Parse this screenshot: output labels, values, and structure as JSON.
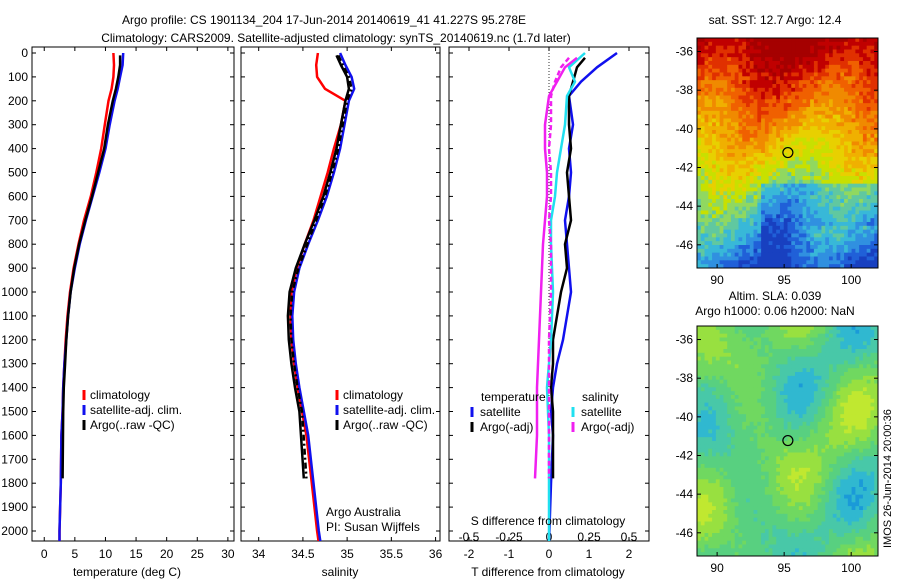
{
  "header": {
    "line1": "Argo profile: CS 1901134_204 17-Jun-2014 20140619_41 41.227S 95.278E",
    "line2": "Climatology: CARS2009. Satellite-adjusted climatology: synTS_20140619.nc (1.7d later)"
  },
  "credits": {
    "line1": "Argo Australia",
    "line2": "PI: Susan Wijffels"
  },
  "map_sst": {
    "label": "sat. SST: 12.7 Argo: 12.4"
  },
  "map_sla": {
    "label1": "Altim. SLA: 0.039",
    "label2": "Argo h1000: 0.06 h2000: NaN"
  },
  "vertical_stamp": "IMOS 26-Jun-2014 20:00:36",
  "colors": {
    "red": "#ff0000",
    "blue": "#1010ee",
    "black": "#000000",
    "cyan": "#20e0f0",
    "magenta": "#f020f0"
  },
  "chart_data": [
    {
      "type": "line",
      "id": "temperature",
      "xlabel": "temperature (deg C)",
      "ylabel": "",
      "xlim": [
        -2,
        31
      ],
      "ylim": [
        2050,
        0
      ],
      "xticks": [
        0,
        5,
        10,
        15,
        20,
        25,
        30
      ],
      "yticks": [
        0,
        100,
        200,
        300,
        400,
        500,
        600,
        700,
        800,
        900,
        1000,
        1100,
        1200,
        1300,
        1400,
        1500,
        1600,
        1700,
        1800,
        1900,
        2000
      ],
      "legend": {
        "position": "bottom-right",
        "entries": [
          "climatology",
          "satellite-adj. clim.",
          "Argo(..raw -QC)"
        ]
      },
      "series": [
        {
          "name": "climatology",
          "color": "red",
          "dash": "solid",
          "x": [
            11.3,
            11.4,
            11.3,
            11.0,
            10.5,
            9.9,
            9.3,
            8.5,
            7.6,
            6.5,
            5.6,
            4.8,
            4.2,
            3.8,
            3.5,
            3.3,
            3.1,
            3.0,
            2.8,
            2.7,
            2.5,
            2.5
          ],
          "y": [
            0,
            50,
            100,
            150,
            200,
            300,
            400,
            500,
            600,
            700,
            800,
            900,
            1000,
            1100,
            1200,
            1300,
            1400,
            1500,
            1600,
            1800,
            2000,
            2050
          ]
        },
        {
          "name": "satellite-adj. clim.",
          "color": "blue",
          "dash": "solid",
          "x": [
            12.9,
            12.8,
            12.4,
            12.0,
            11.5,
            10.7,
            10.0,
            9.0,
            7.9,
            6.8,
            5.8,
            5.0,
            4.3,
            3.9,
            3.6,
            3.3,
            3.1,
            3.0,
            2.8,
            2.7,
            2.5,
            2.5
          ],
          "y": [
            0,
            50,
            100,
            150,
            200,
            300,
            400,
            500,
            600,
            700,
            800,
            900,
            1000,
            1100,
            1200,
            1300,
            1400,
            1500,
            1600,
            1800,
            2000,
            2050
          ]
        },
        {
          "name": "Argo(..raw -QC)",
          "color": "black",
          "dash": "solid",
          "x": [
            12.4,
            12.4,
            12.1,
            11.7,
            11.2,
            10.4,
            9.8,
            8.8,
            7.8,
            6.7,
            5.7,
            4.9,
            4.3,
            3.9,
            3.6,
            3.4,
            3.2,
            3.1,
            3.0
          ],
          "y": [
            10,
            50,
            100,
            150,
            200,
            300,
            400,
            500,
            600,
            700,
            800,
            900,
            1000,
            1100,
            1200,
            1300,
            1400,
            1500,
            1780
          ]
        }
      ]
    },
    {
      "type": "line",
      "id": "salinity",
      "xlabel": "salinity",
      "ylabel": "",
      "xlim": [
        33.8,
        36.05
      ],
      "ylim": [
        2050,
        0
      ],
      "xticks": [
        34,
        34.5,
        35,
        35.5,
        36
      ],
      "legend": {
        "position": "bottom-right",
        "entries": [
          "climatology",
          "satellite-adj. clim.",
          "Argo(..raw -QC)"
        ]
      },
      "series": [
        {
          "name": "climatology",
          "color": "red",
          "dash": "solid",
          "x": [
            34.67,
            34.65,
            34.66,
            34.75,
            34.98,
            34.93,
            34.85,
            34.78,
            34.7,
            34.62,
            34.52,
            34.43,
            34.37,
            34.36,
            34.37,
            34.4,
            34.44,
            34.49,
            34.54,
            34.6,
            34.66,
            34.68
          ],
          "y": [
            0,
            50,
            100,
            150,
            200,
            300,
            400,
            500,
            600,
            700,
            800,
            900,
            1000,
            1100,
            1200,
            1300,
            1400,
            1500,
            1600,
            1800,
            2000,
            2050
          ]
        },
        {
          "name": "satellite-adj. clim.",
          "color": "blue",
          "dash": "solid",
          "x": [
            34.92,
            34.98,
            35.05,
            35.08,
            35.02,
            34.97,
            34.92,
            34.85,
            34.77,
            34.67,
            34.56,
            34.46,
            34.4,
            34.38,
            34.39,
            34.42,
            34.46,
            34.51,
            34.56,
            34.62,
            34.68,
            34.7
          ],
          "y": [
            0,
            50,
            100,
            150,
            200,
            300,
            400,
            500,
            600,
            700,
            800,
            900,
            1000,
            1100,
            1200,
            1300,
            1400,
            1500,
            1600,
            1800,
            2000,
            2050
          ]
        },
        {
          "name": "Argo(..raw -QC)",
          "color": "black",
          "dash": "solid",
          "x": [
            34.88,
            34.93,
            35.0,
            35.02,
            34.98,
            34.93,
            34.88,
            34.81,
            34.73,
            34.63,
            34.52,
            34.42,
            34.35,
            34.33,
            34.34,
            34.37,
            34.41,
            34.46,
            34.51
          ],
          "y": [
            10,
            50,
            100,
            150,
            200,
            300,
            400,
            500,
            600,
            700,
            800,
            900,
            1000,
            1100,
            1200,
            1300,
            1400,
            1500,
            1780
          ]
        },
        {
          "name": "",
          "color": "black",
          "dash": "dashdot",
          "x": [
            34.9,
            34.95,
            35.02,
            35.05,
            35.0,
            34.95,
            34.9,
            34.83,
            34.75,
            34.65,
            34.55,
            34.45,
            34.38,
            34.36,
            34.37,
            34.4,
            34.44,
            34.49,
            34.54
          ],
          "y": [
            10,
            50,
            100,
            150,
            200,
            300,
            400,
            500,
            600,
            700,
            800,
            900,
            1000,
            1100,
            1200,
            1300,
            1400,
            1500,
            1780
          ]
        }
      ]
    },
    {
      "type": "line",
      "id": "difference",
      "xlabel": "T difference from climatology",
      "xlabel_top": "S difference from climatology",
      "ylabel": "",
      "xlim": [
        -2.5,
        2.5
      ],
      "ylim": [
        2050,
        0
      ],
      "xticks": [
        -2,
        -1,
        0,
        1,
        2
      ],
      "xticks_s": [
        -0.5,
        -0.25,
        0,
        0.25,
        0.5
      ],
      "legend": {
        "position": "bottom",
        "groups": [
          {
            "title": "temperature",
            "entries": [
              "satellite",
              "Argo(-adj)"
            ]
          },
          {
            "title": "salinity",
            "entries": [
              "satellite",
              "Argo(-adj)"
            ]
          }
        ]
      },
      "series": [
        {
          "name": "temperature satellite",
          "color": "blue",
          "dash": "solid",
          "x": [
            1.7,
            1.2,
            0.8,
            0.5,
            0.6,
            0.5,
            0.55,
            0.5,
            0.4,
            0.45,
            0.5,
            0.55,
            0.45,
            0.35,
            0.2,
            0.1,
            0.05,
            0.1,
            0.05,
            0.0
          ],
          "y": [
            0,
            60,
            120,
            180,
            300,
            400,
            500,
            600,
            700,
            800,
            900,
            1000,
            1100,
            1200,
            1300,
            1400,
            1500,
            1600,
            1800,
            2050
          ]
        },
        {
          "name": "temperature Argo(-adj)",
          "color": "black",
          "dash": "solid",
          "x": [
            0.9,
            0.7,
            0.6,
            0.5,
            0.5,
            0.55,
            0.45,
            0.5,
            0.55,
            0.4,
            0.45,
            0.3,
            0.2,
            0.1,
            0.1,
            0.05,
            0.1,
            0.1
          ],
          "y": [
            20,
            60,
            120,
            180,
            300,
            400,
            500,
            600,
            700,
            800,
            900,
            1000,
            1100,
            1200,
            1300,
            1400,
            1500,
            1780
          ]
        },
        {
          "name": "salinity satellite",
          "color": "cyan",
          "dash": "solid",
          "x": [
            0.9,
            0.5,
            0.65,
            0.45,
            0.4,
            0.3,
            0.2,
            0.15,
            0.05,
            0.05,
            0.1,
            0.05,
            -0.05,
            0.0,
            0.0,
            0.0,
            0.0
          ],
          "y": [
            0,
            60,
            120,
            180,
            300,
            400,
            500,
            600,
            700,
            800,
            1000,
            1200,
            1400,
            1600,
            1800,
            2000,
            2050
          ]
        },
        {
          "name": "salinity Argo(-adj)",
          "color": "magenta",
          "dash": "solid",
          "x": [
            0.7,
            0.4,
            0.2,
            0.0,
            -0.1,
            -0.1,
            -0.05,
            -0.05,
            -0.1,
            -0.15,
            -0.2,
            -0.25,
            -0.3,
            -0.3,
            -0.35
          ],
          "y": [
            20,
            60,
            120,
            180,
            300,
            400,
            500,
            600,
            700,
            800,
            1000,
            1200,
            1400,
            1600,
            1780
          ]
        },
        {
          "name": "",
          "color": "magenta",
          "dash": "dashed",
          "x": [
            0.5,
            0.3,
            0.15,
            0.05,
            0.05,
            0.0,
            0.05,
            0.05,
            0.0,
            0.05,
            0.05,
            0.0,
            0.0,
            0.0
          ],
          "y": [
            20,
            60,
            120,
            180,
            300,
            400,
            500,
            600,
            700,
            800,
            1000,
            1200,
            1400,
            1780
          ]
        }
      ]
    },
    {
      "type": "heatmap",
      "id": "sst_map",
      "title": "sat. SST: 12.7 Argo: 12.4",
      "xlim": [
        88.5,
        102
      ],
      "ylim": [
        -47.2,
        -35.3
      ],
      "xticks": [
        90,
        95,
        100
      ],
      "yticks": [
        -36,
        -38,
        -40,
        -42,
        -44,
        -46
      ],
      "marker": {
        "x": 95.278,
        "y": -41.227
      }
    },
    {
      "type": "heatmap",
      "id": "sla_map",
      "title": "Altim. SLA: 0.039",
      "xlim": [
        88.5,
        102
      ],
      "ylim": [
        -47.2,
        -35.3
      ],
      "xticks": [
        90,
        95,
        100
      ],
      "yticks": [
        -36,
        -38,
        -40,
        -42,
        -44,
        -46
      ],
      "marker": {
        "x": 95.278,
        "y": -41.227
      }
    }
  ]
}
